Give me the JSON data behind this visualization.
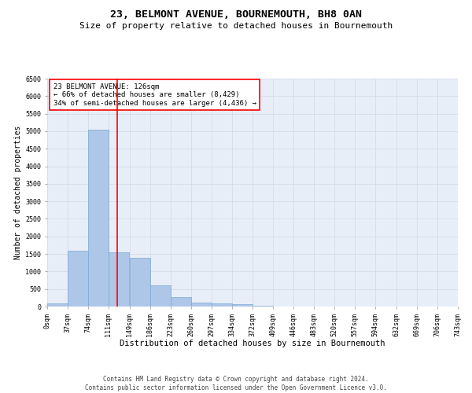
{
  "title": "23, BELMONT AVENUE, BOURNEMOUTH, BH8 0AN",
  "subtitle": "Size of property relative to detached houses in Bournemouth",
  "xlabel": "Distribution of detached houses by size in Bournemouth",
  "ylabel": "Number of detached properties",
  "bin_edges": [
    0,
    37,
    74,
    111,
    149,
    186,
    223,
    260,
    297,
    334,
    372,
    409,
    446,
    483,
    520,
    557,
    594,
    632,
    669,
    706,
    743
  ],
  "bar_heights": [
    100,
    1600,
    5050,
    1550,
    1400,
    600,
    280,
    120,
    100,
    75,
    20,
    5,
    0,
    0,
    0,
    0,
    0,
    0,
    0,
    0
  ],
  "bar_color": "#aec6e8",
  "bar_edge_color": "#7aaad0",
  "bar_linewidth": 0.5,
  "vline_x": 126,
  "vline_color": "red",
  "vline_linewidth": 1.2,
  "annotation_title": "23 BELMONT AVENUE: 126sqm",
  "annotation_line1": "← 66% of detached houses are smaller (8,429)",
  "annotation_line2": "34% of semi-detached houses are larger (4,436) →",
  "ylim": [
    0,
    6500
  ],
  "yticks": [
    0,
    500,
    1000,
    1500,
    2000,
    2500,
    3000,
    3500,
    4000,
    4500,
    5000,
    5500,
    6000,
    6500
  ],
  "grid_color": "#d0d8e8",
  "background_color": "#e8eef8",
  "footer_line1": "Contains HM Land Registry data © Crown copyright and database right 2024.",
  "footer_line2": "Contains public sector information licensed under the Open Government Licence v3.0.",
  "title_fontsize": 9.5,
  "subtitle_fontsize": 8.0,
  "xlabel_fontsize": 7.5,
  "ylabel_fontsize": 7.0,
  "tick_fontsize": 6.0,
  "annotation_fontsize": 6.5,
  "footer_fontsize": 5.5
}
